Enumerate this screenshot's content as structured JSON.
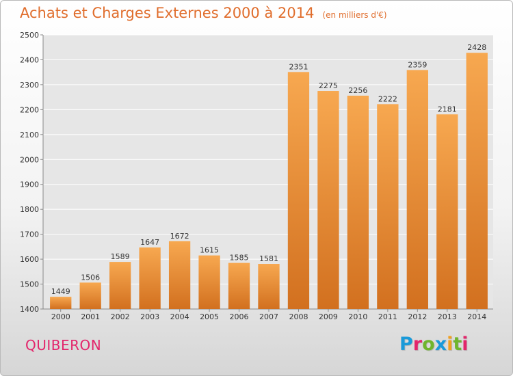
{
  "header": {
    "title": "Achats et Charges Externes 2000 à 2014",
    "subtitle": "(en milliers d'€)"
  },
  "footer": {
    "city": "QUIBERON",
    "brand": "Proxiti",
    "brand_colors": [
      "#1a9ad9",
      "#e3256b",
      "#6fb52c",
      "#1a9ad9",
      "#f2a01e",
      "#6fb52c",
      "#e3256b"
    ]
  },
  "colors": {
    "bar_top": "#f7a850",
    "bar_bottom": "#d2701f",
    "title": "#e06d2c",
    "plot_background": "#e6e6e6",
    "grid": "#ffffff"
  },
  "chart_data": {
    "type": "bar",
    "title": "Achats et Charges Externes 2000 à 2014",
    "subtitle": "(en milliers d'€)",
    "xlabel": "",
    "ylabel": "",
    "categories": [
      "2000",
      "2001",
      "2002",
      "2003",
      "2004",
      "2005",
      "2006",
      "2007",
      "2008",
      "2009",
      "2010",
      "2011",
      "2012",
      "2013",
      "2014"
    ],
    "values": [
      1449,
      1506,
      1589,
      1647,
      1672,
      1615,
      1585,
      1581,
      2351,
      2275,
      2256,
      2222,
      2359,
      2181,
      2428
    ],
    "ylim": [
      1400,
      2500
    ],
    "yticks": [
      1400,
      1500,
      1600,
      1700,
      1800,
      1900,
      2000,
      2100,
      2200,
      2300,
      2400,
      2500
    ],
    "grid": true,
    "data_labels": true,
    "legend": "none"
  }
}
